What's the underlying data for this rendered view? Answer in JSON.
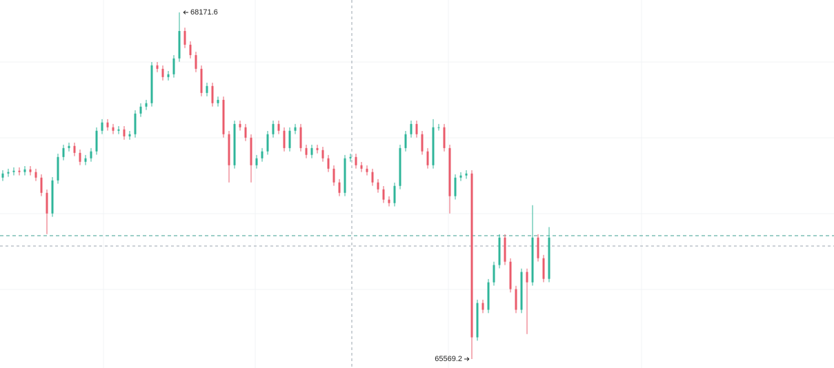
{
  "chart_data": {
    "type": "candlestick",
    "series": [
      {
        "up_color": "#2fb59a",
        "down_color": "#ea5b6b",
        "open": [
          66931,
          66962,
          66973,
          66983,
          66973,
          66993,
          66973,
          66931,
          66817,
          66662,
          66910,
          67086,
          67153,
          67169,
          67117,
          67050,
          67076,
          67128,
          67283,
          67345,
          67309,
          67283,
          67293,
          67241,
          67257,
          67412,
          67464,
          67490,
          67774,
          67748,
          67686,
          67707,
          67826,
          68032,
          67929,
          67851,
          67748,
          67567,
          67619,
          67490,
          67515,
          67257,
          67024,
          67334,
          67309,
          67231,
          67024,
          67076,
          67128,
          67257,
          67334,
          67283,
          67153,
          67283,
          67309,
          67153,
          67102,
          67153,
          67138,
          67076,
          66998,
          66895,
          66817,
          67076,
          67086,
          67024,
          66998,
          66973,
          66895,
          66843,
          66766,
          66740,
          66869,
          67153,
          67257,
          67334,
          67257,
          67128,
          67024,
          67309,
          67309,
          67153,
          66792,
          66931,
          66947,
          66962,
          65732,
          65990,
          65939,
          66145,
          66275,
          66481,
          66300,
          66094,
          65939,
          66223,
          66145,
          66481,
          66326,
          66171
        ],
        "high": [
          66987,
          66998,
          67008,
          67008,
          67018,
          67018,
          66998,
          66956,
          66842,
          66935,
          67111,
          67178,
          67194,
          67194,
          67142,
          67101,
          67153,
          67308,
          67370,
          67370,
          67334,
          67318,
          67318,
          67282,
          67437,
          67489,
          67515,
          67799,
          67799,
          67773,
          67732,
          67851,
          68171.6,
          68057,
          67954,
          67876,
          67773,
          67644,
          67644,
          67540,
          67540,
          67282,
          67359,
          67359,
          67334,
          67256,
          67101,
          67153,
          67282,
          67359,
          67359,
          67308,
          67308,
          67334,
          67334,
          67178,
          67178,
          67178,
          67163,
          67101,
          67023,
          66920,
          67101,
          67111,
          67111,
          67049,
          67023,
          66998,
          66920,
          66868,
          66791,
          66894,
          67178,
          67282,
          67359,
          67359,
          67282,
          67153,
          67370,
          67334,
          67334,
          67178,
          66956,
          66972,
          66987,
          66987,
          66015,
          66015,
          66170,
          66300,
          66506,
          66506,
          66325,
          66119,
          66248,
          66248,
          66724,
          66506,
          66351,
          66560
        ],
        "low": [
          66906,
          66937,
          66948,
          66948,
          66948,
          66948,
          66906,
          66792,
          66507,
          66637,
          66885,
          67061,
          67128,
          67092,
          67025,
          67025,
          67051,
          67103,
          67258,
          67284,
          67258,
          67258,
          67216,
          67216,
          67232,
          67387,
          67439,
          67465,
          67723,
          67661,
          67661,
          67682,
          67801,
          67904,
          67826,
          67723,
          67542,
          67542,
          67465,
          67465,
          67232,
          66895,
          66999,
          67284,
          67206,
          66895,
          66999,
          67051,
          67103,
          67232,
          67258,
          67128,
          67128,
          67258,
          67128,
          67077,
          67077,
          67113,
          67051,
          66973,
          66870,
          66792,
          66792,
          67051,
          66999,
          66973,
          66948,
          66870,
          66818,
          66741,
          66715,
          66715,
          66844,
          67128,
          67232,
          67232,
          67103,
          66999,
          66999,
          67284,
          67128,
          66662,
          66767,
          66906,
          66922,
          65569.2,
          65707,
          65914,
          65914,
          66120,
          66250,
          66275,
          66069,
          65914,
          65914,
          65757,
          66120,
          66301,
          66146,
          66146
        ],
        "close": [
          66962,
          66973,
          66983,
          66973,
          66993,
          66973,
          66931,
          66817,
          66662,
          66910,
          67086,
          67153,
          67169,
          67117,
          67050,
          67076,
          67128,
          67283,
          67345,
          67309,
          67283,
          67293,
          67241,
          67257,
          67412,
          67464,
          67490,
          67774,
          67748,
          67686,
          67707,
          67826,
          68032,
          67929,
          67851,
          67748,
          67567,
          67619,
          67490,
          67515,
          67257,
          67024,
          67334,
          67309,
          67231,
          67024,
          67076,
          67128,
          67257,
          67334,
          67283,
          67153,
          67283,
          67309,
          67153,
          67102,
          67153,
          67138,
          67076,
          66998,
          66895,
          66817,
          67076,
          67086,
          67024,
          66998,
          66973,
          66895,
          66843,
          66766,
          66740,
          66869,
          67153,
          67257,
          67334,
          67257,
          67128,
          67024,
          67309,
          67309,
          67153,
          66792,
          66931,
          66947,
          66962,
          65732,
          65990,
          65939,
          66145,
          66275,
          66481,
          66300,
          66094,
          65939,
          66223,
          66145,
          66481,
          66326,
          66171,
          66481
        ]
      }
    ]
  }
}
